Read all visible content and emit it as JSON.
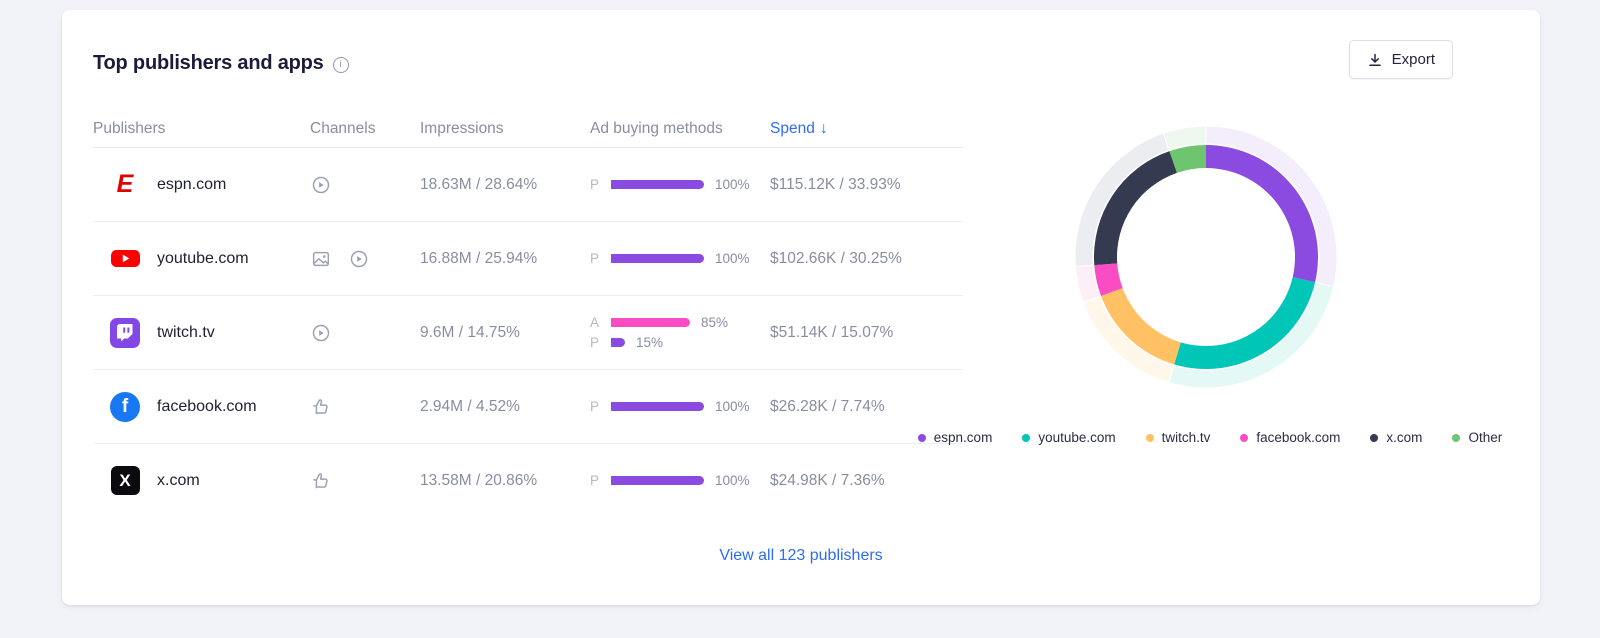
{
  "card": {
    "title": "Top publishers and apps",
    "export_label": "Export",
    "view_all_label": "View all 123 publishers"
  },
  "table": {
    "headers": {
      "publishers": "Publishers",
      "channels": "Channels",
      "impressions": "Impressions",
      "ad_buying": "Ad buying methods",
      "spend": "Spend",
      "sort_icon": "↓"
    },
    "rows": [
      {
        "name": "espn.com",
        "logo": "espn-logo",
        "channels": [
          "video-icon"
        ],
        "impressions": "18.63M / 28.64%",
        "methods": [
          {
            "label": "P",
            "percent": 100,
            "percent_label": "100%",
            "color": "#8B4BE0"
          }
        ],
        "spend": "$115.12K / 33.93%"
      },
      {
        "name": "youtube.com",
        "logo": "youtube-logo",
        "channels": [
          "display-icon",
          "video-icon"
        ],
        "impressions": "16.88M / 25.94%",
        "methods": [
          {
            "label": "P",
            "percent": 100,
            "percent_label": "100%",
            "color": "#8B4BE0"
          }
        ],
        "spend": "$102.66K / 30.25%"
      },
      {
        "name": "twitch.tv",
        "logo": "twitch-logo",
        "channels": [
          "video-icon"
        ],
        "impressions": "9.6M / 14.75%",
        "methods": [
          {
            "label": "A",
            "percent": 85,
            "percent_label": "85%",
            "color": "#FB4DC3"
          },
          {
            "label": "P",
            "percent": 15,
            "percent_label": "15%",
            "color": "#8B4BE0"
          }
        ],
        "spend": "$51.14K / 15.07%"
      },
      {
        "name": "facebook.com",
        "logo": "facebook-logo",
        "channels": [
          "social-icon"
        ],
        "impressions": "2.94M / 4.52%",
        "methods": [
          {
            "label": "P",
            "percent": 100,
            "percent_label": "100%",
            "color": "#8B4BE0"
          }
        ],
        "spend": "$26.28K / 7.74%"
      },
      {
        "name": "x.com",
        "logo": "x-logo",
        "channels": [
          "social-icon"
        ],
        "impressions": "13.58M / 20.86%",
        "methods": [
          {
            "label": "P",
            "percent": 100,
            "percent_label": "100%",
            "color": "#8B4BE0"
          }
        ],
        "spend": "$24.98K / 7.36%"
      }
    ]
  },
  "chart_data": {
    "type": "pie",
    "donut": true,
    "metric": "impressions_share_percent",
    "labels": [
      "espn.com",
      "youtube.com",
      "twitch.tv",
      "facebook.com",
      "x.com",
      "Other"
    ],
    "values": [
      28.64,
      25.94,
      14.75,
      4.52,
      20.86,
      5.29
    ],
    "colors": [
      "#8B4BE0",
      "#00C6B8",
      "#FFC163",
      "#FB4DC3",
      "#343A4F",
      "#6FC56F"
    ],
    "halo_colors": [
      "#F3EDFC",
      "#E4F8F6",
      "#FFF7EA",
      "#FDEFF8",
      "#ECEDF1",
      "#EFF8EF"
    ],
    "legend_position": "bottom"
  }
}
